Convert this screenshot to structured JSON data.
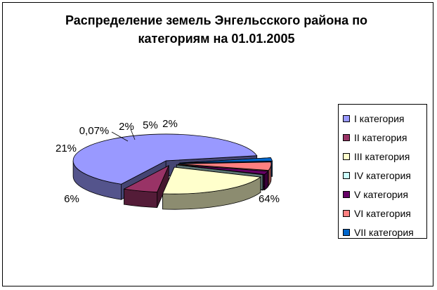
{
  "chart_data": {
    "type": "pie",
    "title": "Распределение земель Энгельсского района по категориям на 01.01.2005",
    "title_lines": [
      "Распределение земель Энгельсского района по",
      "категориям на 01.01.2005"
    ],
    "three_d": true,
    "legend_position": "right",
    "categories": [
      "I категория",
      "II категория",
      "III категория",
      "IV категория",
      "V категория",
      "VI категория",
      "VII категория"
    ],
    "values": [
      64,
      6,
      21,
      0.07,
      2,
      5,
      2
    ],
    "data_labels": [
      "64%",
      "6%",
      "21%",
      "0,07%",
      "2%",
      "5%",
      "2%"
    ],
    "colors": [
      "#9999FF",
      "#993366",
      "#FFFFCC",
      "#CCFFFF",
      "#660066",
      "#FF8080",
      "#0066CC"
    ]
  }
}
